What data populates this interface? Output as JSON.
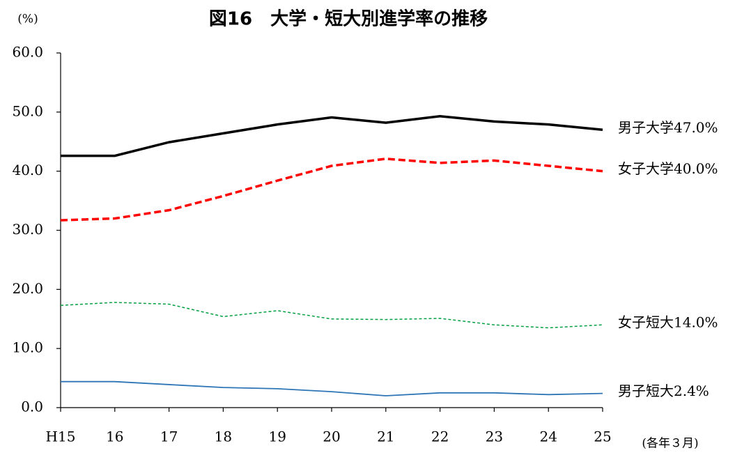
{
  "chart_data": {
    "type": "line",
    "title": "図16　大学・短大別進学率の推移",
    "y_unit": "(%)",
    "x_note": "(各年３月)",
    "categories": [
      "H15",
      "16",
      "17",
      "18",
      "19",
      "20",
      "21",
      "22",
      "23",
      "24",
      "25"
    ],
    "ylim": [
      0,
      60
    ],
    "yticks": [
      {
        "value": 0,
        "label": "0.0"
      },
      {
        "value": 10,
        "label": "10.0"
      },
      {
        "value": 20,
        "label": "20.0"
      },
      {
        "value": 30,
        "label": "30.0"
      },
      {
        "value": 40,
        "label": "40.0"
      },
      {
        "value": 50,
        "label": "50.0"
      },
      {
        "value": 60,
        "label": "60.0"
      }
    ],
    "series": [
      {
        "label": "男子大学47.0%",
        "color": "#000000",
        "width": 3.5,
        "dash": "none",
        "values": [
          42.6,
          42.6,
          44.9,
          46.4,
          47.9,
          49.1,
          48.2,
          49.3,
          48.4,
          47.9,
          47.0
        ]
      },
      {
        "label": "女子大学40.0%",
        "color": "#ff0000",
        "width": 3.5,
        "dash": "10 5",
        "values": [
          31.7,
          32.0,
          33.4,
          35.8,
          38.4,
          40.9,
          42.1,
          41.4,
          41.8,
          40.9,
          40.0
        ]
      },
      {
        "label": "女子短大14.0%",
        "color": "#00a040",
        "width": 1.5,
        "dash": "4 3",
        "values": [
          17.3,
          17.8,
          17.5,
          15.4,
          16.4,
          15.0,
          14.9,
          15.1,
          14.0,
          13.5,
          14.0
        ]
      },
      {
        "label": "男子短大2.4%",
        "color": "#2e75b6",
        "width": 1.8,
        "dash": "none",
        "values": [
          4.4,
          4.4,
          3.9,
          3.4,
          3.2,
          2.7,
          2.0,
          2.5,
          2.5,
          2.2,
          2.4
        ]
      }
    ]
  }
}
